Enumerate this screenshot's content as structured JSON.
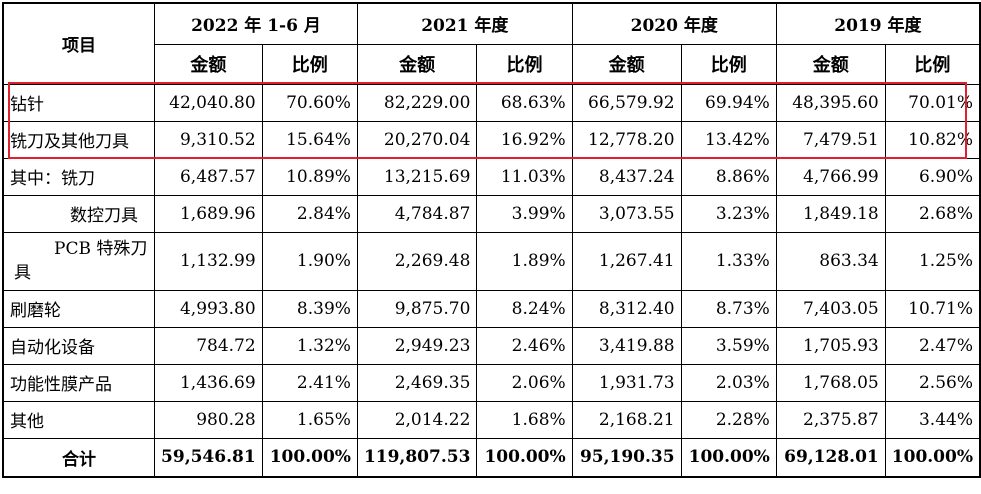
{
  "header": {
    "item_label": "项目",
    "periods": [
      "2022 年 1-6 月",
      "2021 年度",
      "2020 年度",
      "2019 年度"
    ],
    "amount_label": "金额",
    "ratio_label": "比例"
  },
  "rows": [
    {
      "label": "钻针",
      "values": [
        "42,040.80",
        "70.60%",
        "82,229.00",
        "68.63%",
        "66,579.92",
        "69.94%",
        "48,395.60",
        "70.01%"
      ]
    },
    {
      "label": "铣刀及其他刀具",
      "values": [
        "9,310.52",
        "15.64%",
        "20,270.04",
        "16.92%",
        "12,778.20",
        "13.42%",
        "7,479.51",
        "10.82%"
      ]
    },
    {
      "label": "其中：铣刀",
      "values": [
        "6,487.57",
        "10.89%",
        "13,215.69",
        "11.03%",
        "8,437.24",
        "8.86%",
        "4,766.99",
        "6.90%"
      ]
    },
    {
      "label": "数控刀具",
      "values": [
        "1,689.96",
        "2.84%",
        "4,784.87",
        "3.99%",
        "3,073.55",
        "3.23%",
        "1,849.18",
        "2.68%"
      ]
    },
    {
      "label_line1": "PCB 特殊刀",
      "label_line2": "具",
      "values": [
        "1,132.99",
        "1.90%",
        "2,269.48",
        "1.89%",
        "1,267.41",
        "1.33%",
        "863.34",
        "1.25%"
      ]
    },
    {
      "label": "刷磨轮",
      "values": [
        "4,993.80",
        "8.39%",
        "9,875.70",
        "8.24%",
        "8,312.40",
        "8.73%",
        "7,403.05",
        "10.71%"
      ]
    },
    {
      "label": "自动化设备",
      "values": [
        "784.72",
        "1.32%",
        "2,949.23",
        "2.46%",
        "3,419.88",
        "3.59%",
        "1,705.93",
        "2.47%"
      ]
    },
    {
      "label": "功能性膜产品",
      "values": [
        "1,436.69",
        "2.41%",
        "2,469.35",
        "2.06%",
        "1,931.73",
        "2.03%",
        "1,768.05",
        "2.56%"
      ]
    },
    {
      "label": "其他",
      "values": [
        "980.28",
        "1.65%",
        "2,014.22",
        "1.68%",
        "2,168.21",
        "2.28%",
        "2,375.87",
        "3.44%"
      ]
    }
  ],
  "total": {
    "label": "合计",
    "values": [
      "59,546.81",
      "100.00%",
      "119,807.53",
      "100.00%",
      "95,190.35",
      "100.00%",
      "69,128.01",
      "100.00%"
    ]
  },
  "colors": {
    "highlight_border": "#e0202e"
  }
}
